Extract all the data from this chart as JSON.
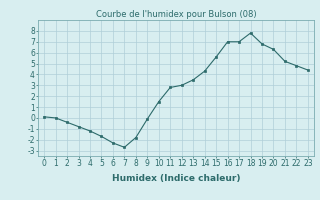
{
  "x": [
    0,
    1,
    2,
    3,
    4,
    5,
    6,
    7,
    8,
    9,
    10,
    11,
    12,
    13,
    14,
    15,
    16,
    17,
    18,
    19,
    20,
    21,
    22,
    23
  ],
  "y": [
    0.1,
    0.0,
    -0.4,
    -0.8,
    -1.2,
    -1.7,
    -2.3,
    -2.7,
    -1.8,
    -0.1,
    1.5,
    2.8,
    3.0,
    3.5,
    4.3,
    5.6,
    7.0,
    7.0,
    7.8,
    6.8,
    6.3,
    5.2,
    4.8,
    4.4
  ],
  "title": "Courbe de l'humidex pour Bulson (08)",
  "xlabel": "Humidex (Indice chaleur)",
  "ylim": [
    -3.5,
    9.0
  ],
  "xlim": [
    -0.5,
    23.5
  ],
  "yticks": [
    -3,
    -2,
    -1,
    0,
    1,
    2,
    3,
    4,
    5,
    6,
    7,
    8
  ],
  "xticks": [
    0,
    1,
    2,
    3,
    4,
    5,
    6,
    7,
    8,
    9,
    10,
    11,
    12,
    13,
    14,
    15,
    16,
    17,
    18,
    19,
    20,
    21,
    22,
    23
  ],
  "line_color": "#2d6b6b",
  "marker_color": "#2d6b6b",
  "bg_color": "#d8eef0",
  "grid_color": "#b0cfd8",
  "title_fontsize": 6,
  "label_fontsize": 6.5,
  "tick_fontsize": 5.5
}
